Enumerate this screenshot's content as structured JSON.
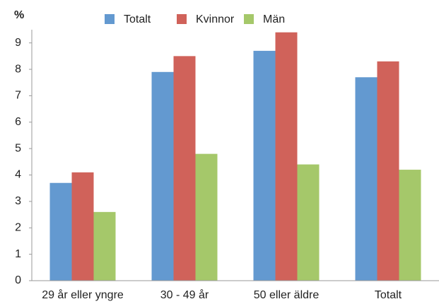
{
  "chart_data": {
    "type": "bar",
    "y_label": "%",
    "categories": [
      "29 år eller yngre",
      "30 - 49 år",
      "50 eller äldre",
      "Totalt"
    ],
    "series": [
      {
        "name": "Totalt",
        "color": "#6399d0",
        "values": [
          3.7,
          7.9,
          8.7,
          7.7
        ]
      },
      {
        "name": "Kvinnor",
        "color": "#d0625a",
        "values": [
          4.1,
          8.5,
          9.4,
          8.3
        ]
      },
      {
        "name": "Män",
        "color": "#a5c86a",
        "values": [
          2.6,
          4.8,
          4.4,
          4.2
        ]
      }
    ],
    "ylim": [
      0,
      9.5
    ],
    "yticks": [
      0,
      1,
      2,
      3,
      4,
      5,
      6,
      7,
      8,
      9
    ],
    "grid": false
  }
}
